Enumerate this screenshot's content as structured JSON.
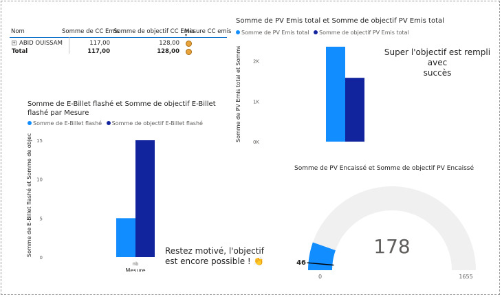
{
  "colors": {
    "light_blue": "#118dff",
    "dark_blue": "#12239e",
    "accent_line": "#0a6cc9",
    "gauge_bg": "#f0f0f0"
  },
  "matrix": {
    "headers": [
      "Nom",
      "Somme de CC Emis",
      "Somme de objectif CC Emis",
      "Mesure CC emis"
    ],
    "rows": [
      {
        "name": "ABID OUISSAM",
        "cc": "117,00",
        "objectif": "128,00",
        "icon": "neutral-face-icon"
      }
    ],
    "total": {
      "name": "Total",
      "cc": "117,00",
      "objectif": "128,00",
      "icon": "neutral-face-icon"
    }
  },
  "notes": {
    "pv_emis": [
      "Super l'objectif est rempli avec",
      "succès"
    ],
    "ebillet": [
      "Restez motivé, l'objectif",
      "est encore possible ! "
    ]
  },
  "chart_data": [
    {
      "type": "bar",
      "title": "Somme de PV Emis total et Somme de objectif PV Emis total",
      "legend": [
        "Somme de PV Emis total",
        "Somme de  objectif PV Emis total"
      ],
      "ylabel": "Somme de PV Emis total et Somme ...",
      "xlabel": "",
      "categories": [
        ""
      ],
      "series": [
        {
          "name": "Somme de PV Emis total",
          "values": [
            2350
          ],
          "color": "#118dff"
        },
        {
          "name": "Somme de  objectif PV Emis total",
          "values": [
            1580
          ],
          "color": "#12239e"
        }
      ],
      "ylim": [
        0,
        2400
      ],
      "yticks": [
        0,
        1000,
        2000
      ],
      "ytick_labels": [
        "0K",
        "1K",
        "2K"
      ]
    },
    {
      "type": "bar",
      "title": "Somme de E-Billet flashé et Somme de objectif E-Billet flashé par Mesure",
      "legend": [
        "Somme de E-Billet flashé",
        "Somme de  objectif E-Billet flashé"
      ],
      "ylabel": "Somme de E-Billet flashé et Somme de objec...",
      "xlabel": "Mesure",
      "categories": [
        "nb"
      ],
      "series": [
        {
          "name": "Somme de E-Billet flashé",
          "values": [
            5
          ],
          "color": "#118dff"
        },
        {
          "name": "Somme de  objectif E-Billet flashé",
          "values": [
            15
          ],
          "color": "#12239e"
        }
      ],
      "ylim": [
        0,
        15
      ],
      "yticks": [
        0,
        5,
        10,
        15
      ]
    },
    {
      "type": "gauge",
      "title": "Somme de PV Encaissé et Somme de objectif PV Encaissé",
      "value": 178,
      "target": 46,
      "min": 0,
      "max": 1655,
      "value_label": "178",
      "target_label": "46",
      "min_label": "0",
      "max_label": "1655"
    }
  ]
}
